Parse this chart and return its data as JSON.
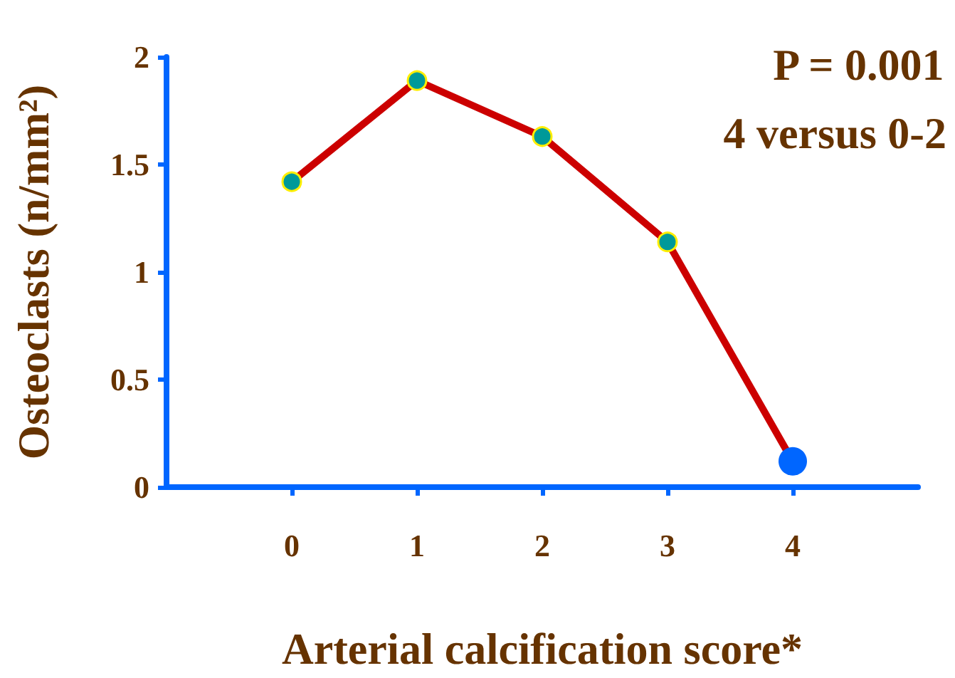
{
  "chart_data": {
    "type": "line",
    "xlabel": "Arterial calcification score*",
    "ylabel": "Osteoclasts (n/mm²)",
    "x": [
      0,
      1,
      2,
      3,
      4
    ],
    "series": [
      {
        "color": "#cc0000",
        "colors": [
          "#009999",
          "#009999",
          "#009999",
          "#009999",
          "#0066ff"
        ],
        "values": [
          1.42,
          1.89,
          1.63,
          1.14,
          0.12
        ]
      }
    ],
    "xlim": [
      -1,
      5
    ],
    "xticks": [
      0,
      1,
      2,
      3,
      4
    ],
    "ylim": [
      0,
      2
    ],
    "yticks": [
      0,
      0.5,
      1,
      1.5,
      2
    ],
    "annotations": [
      "P = 0.001",
      "4 versus 0-2"
    ],
    "marker": "circle",
    "line_style": "solid"
  }
}
